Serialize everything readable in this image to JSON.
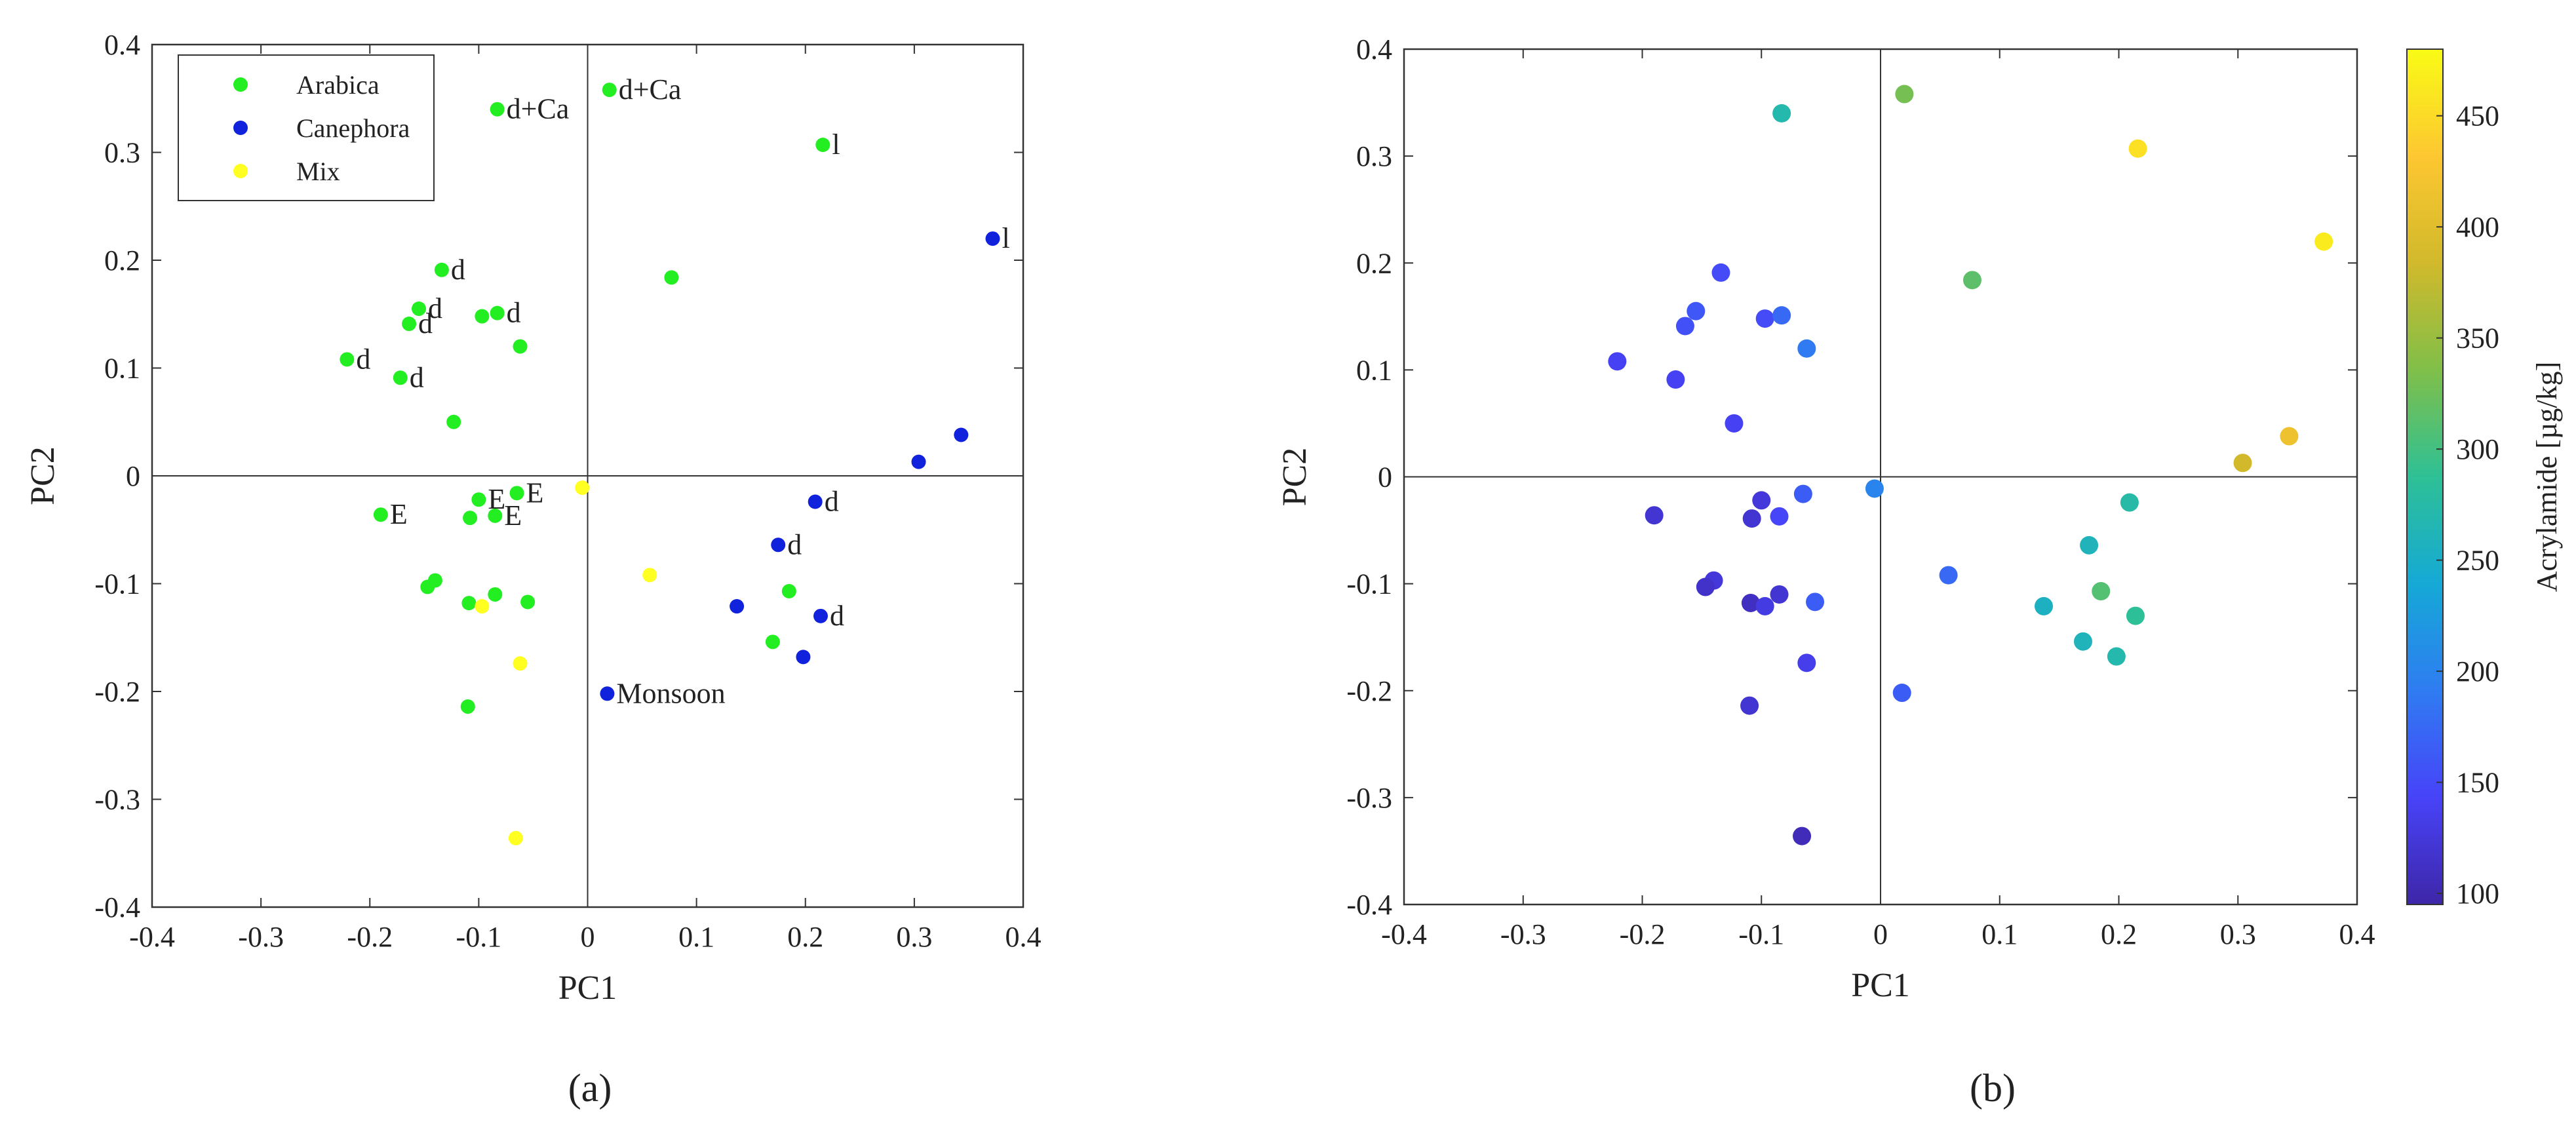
{
  "chart_data": [
    {
      "id": "a",
      "type": "scatter",
      "panel_label": "(a)",
      "xlabel": "PC1",
      "ylabel": "PC2",
      "xlim": [
        -0.4,
        0.4
      ],
      "ylim": [
        -0.4,
        0.4
      ],
      "xticks": [
        "-0.4",
        "-0.3",
        "-0.2",
        "-0.1",
        "0",
        "0.1",
        "0.2",
        "0.3",
        "0.4"
      ],
      "yticks": [
        "-0.4",
        "-0.3",
        "-0.2",
        "-0.1",
        "0",
        "0.1",
        "0.2",
        "0.3",
        "0.4"
      ],
      "grid": false,
      "legend_position": "top-left",
      "series": [
        {
          "name": "Arabica",
          "color": "#22ee22",
          "points": [
            {
              "x": -0.083,
              "y": 0.34,
              "label": "d+Ca"
            },
            {
              "x": 0.02,
              "y": 0.358,
              "label": "d+Ca"
            },
            {
              "x": 0.216,
              "y": 0.307,
              "label": "l"
            },
            {
              "x": 0.077,
              "y": 0.184
            },
            {
              "x": -0.134,
              "y": 0.191,
              "label": "d"
            },
            {
              "x": -0.155,
              "y": 0.155,
              "label": "d"
            },
            {
              "x": -0.164,
              "y": 0.141,
              "label": "d"
            },
            {
              "x": -0.097,
              "y": 0.148
            },
            {
              "x": -0.083,
              "y": 0.151,
              "label": "d"
            },
            {
              "x": -0.062,
              "y": 0.12
            },
            {
              "x": -0.221,
              "y": 0.108,
              "label": "d"
            },
            {
              "x": -0.172,
              "y": 0.091,
              "label": "d"
            },
            {
              "x": -0.123,
              "y": 0.05
            },
            {
              "x": -0.1,
              "y": -0.022,
              "label": "E"
            },
            {
              "x": -0.065,
              "y": -0.016,
              "label": "E"
            },
            {
              "x": -0.19,
              "y": -0.036,
              "label": "E"
            },
            {
              "x": -0.108,
              "y": -0.039
            },
            {
              "x": -0.085,
              "y": -0.037,
              "label": "E"
            },
            {
              "x": -0.14,
              "y": -0.097
            },
            {
              "x": -0.147,
              "y": -0.103
            },
            {
              "x": -0.085,
              "y": -0.11
            },
            {
              "x": -0.109,
              "y": -0.118
            },
            {
              "x": -0.055,
              "y": -0.117
            },
            {
              "x": 0.185,
              "y": -0.107
            },
            {
              "x": 0.17,
              "y": -0.154
            },
            {
              "x": -0.11,
              "y": -0.214
            }
          ]
        },
        {
          "name": "Canephora",
          "color": "#1122dd",
          "points": [
            {
              "x": 0.372,
              "y": 0.22,
              "label": "l"
            },
            {
              "x": 0.343,
              "y": 0.038
            },
            {
              "x": 0.304,
              "y": 0.013
            },
            {
              "x": 0.209,
              "y": -0.024,
              "label": "d"
            },
            {
              "x": 0.175,
              "y": -0.064,
              "label": "d"
            },
            {
              "x": 0.214,
              "y": -0.13,
              "label": "d"
            },
            {
              "x": 0.137,
              "y": -0.121
            },
            {
              "x": 0.198,
              "y": -0.168
            },
            {
              "x": 0.018,
              "y": -0.202,
              "label": "Monsoon"
            }
          ]
        },
        {
          "name": "Mix",
          "color": "#ffff22",
          "points": [
            {
              "x": -0.005,
              "y": -0.011
            },
            {
              "x": 0.057,
              "y": -0.092
            },
            {
              "x": -0.097,
              "y": -0.121
            },
            {
              "x": -0.062,
              "y": -0.174
            },
            {
              "x": -0.066,
              "y": -0.336
            }
          ]
        }
      ]
    },
    {
      "id": "b",
      "type": "scatter",
      "panel_label": "(b)",
      "xlabel": "PC1",
      "ylabel": "PC2",
      "xlim": [
        -0.4,
        0.4
      ],
      "ylim": [
        -0.4,
        0.4
      ],
      "xticks": [
        "-0.4",
        "-0.3",
        "-0.2",
        "-0.1",
        "0",
        "0.1",
        "0.2",
        "0.3",
        "0.4"
      ],
      "yticks": [
        "-0.4",
        "-0.3",
        "-0.2",
        "-0.1",
        "0",
        "0.1",
        "0.2",
        "0.3",
        "0.4"
      ],
      "grid": false,
      "colorbar": {
        "label": "Acrylamide [µg/kg]",
        "range": [
          95,
          480
        ],
        "ticks": [
          "100",
          "150",
          "200",
          "250",
          "300",
          "350",
          "400",
          "450"
        ],
        "colormap": [
          "#3e26a8",
          "#4743f8",
          "#2f7cf2",
          "#15a9d6",
          "#2ec095",
          "#80bf49",
          "#d1b92b",
          "#fdc731",
          "#f9fb15"
        ]
      },
      "points": [
        {
          "x": -0.083,
          "y": 0.34,
          "acrylamide": 270
        },
        {
          "x": 0.02,
          "y": 0.358,
          "acrylamide": 330
        },
        {
          "x": 0.216,
          "y": 0.307,
          "acrylamide": 455
        },
        {
          "x": 0.372,
          "y": 0.22,
          "acrylamide": 465
        },
        {
          "x": 0.077,
          "y": 0.184,
          "acrylamide": 315
        },
        {
          "x": -0.134,
          "y": 0.191,
          "acrylamide": 150
        },
        {
          "x": -0.155,
          "y": 0.155,
          "acrylamide": 160
        },
        {
          "x": -0.164,
          "y": 0.141,
          "acrylamide": 155
        },
        {
          "x": -0.097,
          "y": 0.148,
          "acrylamide": 150
        },
        {
          "x": -0.083,
          "y": 0.151,
          "acrylamide": 175
        },
        {
          "x": -0.062,
          "y": 0.12,
          "acrylamide": 190
        },
        {
          "x": -0.221,
          "y": 0.108,
          "acrylamide": 140
        },
        {
          "x": -0.172,
          "y": 0.091,
          "acrylamide": 140
        },
        {
          "x": -0.123,
          "y": 0.05,
          "acrylamide": 140
        },
        {
          "x": 0.343,
          "y": 0.038,
          "acrylamide": 415
        },
        {
          "x": 0.304,
          "y": 0.013,
          "acrylamide": 385
        },
        {
          "x": -0.005,
          "y": -0.011,
          "acrylamide": 200
        },
        {
          "x": 0.209,
          "y": -0.024,
          "acrylamide": 275
        },
        {
          "x": -0.1,
          "y": -0.022,
          "acrylamide": 125
        },
        {
          "x": -0.065,
          "y": -0.016,
          "acrylamide": 165
        },
        {
          "x": -0.19,
          "y": -0.036,
          "acrylamide": 120
        },
        {
          "x": -0.108,
          "y": -0.039,
          "acrylamide": 120
        },
        {
          "x": -0.085,
          "y": -0.037,
          "acrylamide": 145
        },
        {
          "x": 0.175,
          "y": -0.064,
          "acrylamide": 260
        },
        {
          "x": 0.057,
          "y": -0.092,
          "acrylamide": 175
        },
        {
          "x": -0.14,
          "y": -0.097,
          "acrylamide": 125
        },
        {
          "x": -0.147,
          "y": -0.103,
          "acrylamide": 115
        },
        {
          "x": -0.085,
          "y": -0.11,
          "acrylamide": 120
        },
        {
          "x": -0.109,
          "y": -0.118,
          "acrylamide": 110
        },
        {
          "x": -0.097,
          "y": -0.121,
          "acrylamide": 130
        },
        {
          "x": -0.055,
          "y": -0.117,
          "acrylamide": 165
        },
        {
          "x": 0.185,
          "y": -0.107,
          "acrylamide": 310
        },
        {
          "x": 0.137,
          "y": -0.121,
          "acrylamide": 255
        },
        {
          "x": 0.214,
          "y": -0.13,
          "acrylamide": 285
        },
        {
          "x": 0.17,
          "y": -0.154,
          "acrylamide": 260
        },
        {
          "x": 0.198,
          "y": -0.168,
          "acrylamide": 270
        },
        {
          "x": -0.062,
          "y": -0.174,
          "acrylamide": 135
        },
        {
          "x": 0.018,
          "y": -0.202,
          "acrylamide": 165
        },
        {
          "x": -0.11,
          "y": -0.214,
          "acrylamide": 120
        },
        {
          "x": -0.066,
          "y": -0.336,
          "acrylamide": 105
        }
      ]
    }
  ]
}
